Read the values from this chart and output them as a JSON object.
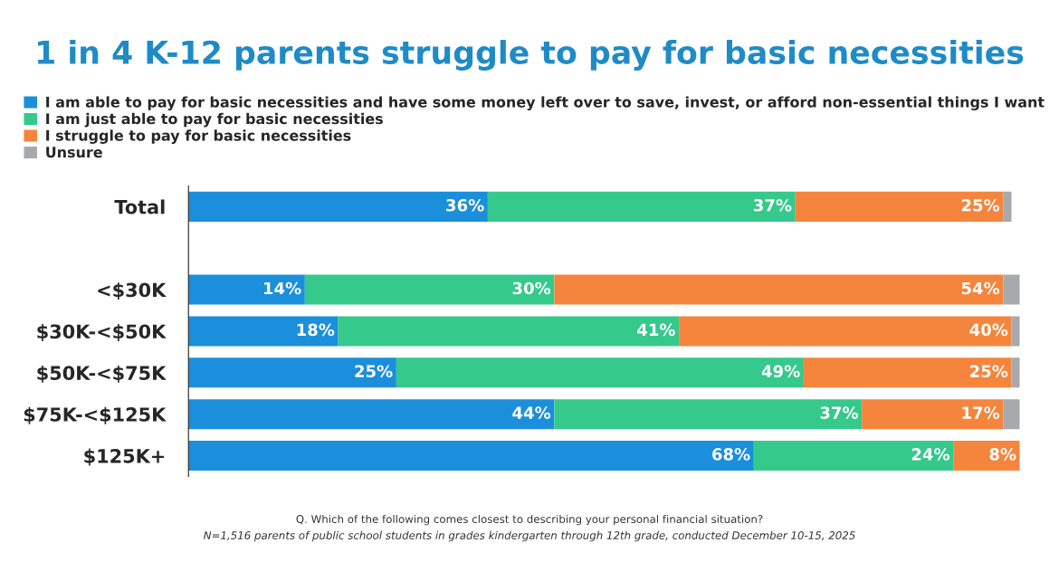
{
  "chart_data": {
    "type": "bar",
    "orientation": "horizontal",
    "stacked": true,
    "title": "1 in 4 K-12 parents struggle to pay for basic necessities",
    "categories": [
      "Total",
      null,
      "<$30K",
      "$30K-<$50K",
      "$50K-<$75K",
      "$75K-<$125K",
      "$125K+"
    ],
    "series": [
      {
        "name": "I am able to pay for basic necessities and have some money left over to save, invest, or afford non-essential things I want",
        "color": "#1b8fdb",
        "values": [
          36,
          null,
          14,
          18,
          25,
          44,
          68
        ],
        "value_labels": [
          "36%",
          null,
          "14%",
          "18%",
          "25%",
          "44%",
          "68%"
        ]
      },
      {
        "name": "I am just able to pay for basic necessities",
        "color": "#35c98c",
        "values": [
          37,
          null,
          30,
          41,
          49,
          37,
          24
        ],
        "value_labels": [
          "37%",
          null,
          "30%",
          "41%",
          "49%",
          "37%",
          "24%"
        ]
      },
      {
        "name": "I struggle to pay for basic necessities",
        "color": "#f5853c",
        "values": [
          25,
          null,
          54,
          40,
          25,
          17,
          8
        ],
        "value_labels": [
          "25%",
          null,
          "54%",
          "40%",
          "25%",
          "17%",
          "8%"
        ]
      },
      {
        "name": "Unsure",
        "color": "#a7a9ac",
        "values": [
          1,
          null,
          2,
          1,
          1,
          2,
          0
        ],
        "value_labels": [
          null,
          null,
          null,
          null,
          null,
          null,
          null
        ]
      }
    ],
    "legend": "top left",
    "grid": false,
    "annotations": [
      "Q. Which of the following comes closest to describing your personal financial situation?",
      "N=1,516 parents of public school students in grades kindergarten through 12th grade, conducted December 10-15, 2025"
    ]
  }
}
